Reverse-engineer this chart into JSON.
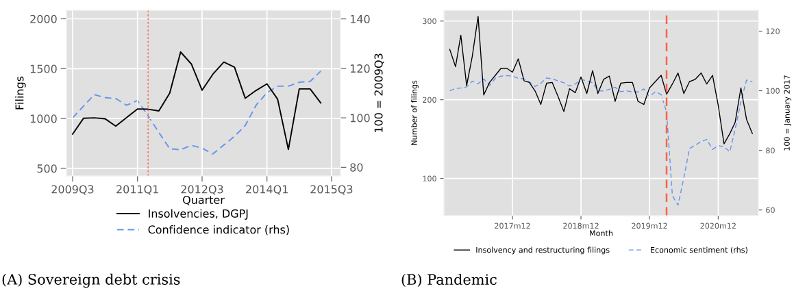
{
  "chart_data": [
    {
      "type": "line",
      "title": "(A) Sovereign debt crisis",
      "xlabel": "Quarter",
      "ylabel": "Filings",
      "y2label": "100 = 2009Q3",
      "x": [
        "2009-07",
        "2009-10",
        "2010-01",
        "2010-04",
        "2010-07",
        "2010-10",
        "2011-01",
        "2011-04",
        "2011-07",
        "2011-10",
        "2012-01",
        "2012-04",
        "2012-07",
        "2012-10",
        "2013-01",
        "2013-04",
        "2013-07",
        "2013-10",
        "2014-01",
        "2014-04",
        "2014-07",
        "2014-10",
        "2015-01",
        "2015-04"
      ],
      "series": [
        {
          "name": "Insolvencies, DGPJ",
          "color": "#000000",
          "line_style": "solid",
          "values": [
            843,
            1002,
            1007,
            998,
            924,
            1010,
            1096,
            1093,
            1076,
            1255,
            1667,
            1547,
            1284,
            1446,
            1566,
            1515,
            1203,
            1282,
            1348,
            1194,
            689,
            1297,
            1297,
            1157
          ]
        },
        {
          "name": "Confidence indicator (rhs)",
          "color": "#6495ed",
          "line_style": "dashed",
          "axis": "y2",
          "values": [
            100,
            104.7,
            109.4,
            108.2,
            107.8,
            105.1,
            107.0,
            100.8,
            94.1,
            87.5,
            87.1,
            88.9,
            87.7,
            85.4,
            89.0,
            92.5,
            96.9,
            105.1,
            110.2,
            112.8,
            112.8,
            114.4,
            114.7,
            118.9
          ]
        }
      ],
      "xlim": [
        "2009-05-10",
        "2015-09-15"
      ],
      "xticks": [
        {
          "value": "2009-07",
          "label": "2009Q3"
        },
        {
          "value": "2011-01",
          "label": "2011Q1"
        },
        {
          "value": "2012-07",
          "label": "2012Q3"
        },
        {
          "value": "2014-01",
          "label": "2014Q1"
        },
        {
          "value": "2015-07",
          "label": "2015Q3"
        }
      ],
      "ylim": [
        424,
        2086
      ],
      "yticks": [
        500,
        1000,
        1500,
        2000
      ],
      "y2lim": [
        76.5,
        143.5
      ],
      "y2ticks": [
        80,
        100,
        120,
        140
      ],
      "ref_lines": [
        {
          "axis": "x",
          "value": "2011-04",
          "color": "#ff6347",
          "line_style": "dotted"
        }
      ],
      "grid": true,
      "legend": "bottom",
      "marker": "none"
    },
    {
      "type": "line",
      "title": "(B) Pandemic",
      "xlabel": "Month",
      "ylabel": "Number of filings",
      "y2label": "100 = January 2017",
      "x": [
        "2017-01",
        "2017-02",
        "2017-03",
        "2017-04",
        "2017-05",
        "2017-06",
        "2017-07",
        "2017-08",
        "2017-09",
        "2017-10",
        "2017-11",
        "2017-12",
        "2018-01",
        "2018-02",
        "2018-03",
        "2018-04",
        "2018-05",
        "2018-06",
        "2018-07",
        "2018-08",
        "2018-09",
        "2018-10",
        "2018-11",
        "2018-12",
        "2019-01",
        "2019-02",
        "2019-03",
        "2019-04",
        "2019-05",
        "2019-06",
        "2019-07",
        "2019-08",
        "2019-09",
        "2019-10",
        "2019-11",
        "2019-12",
        "2020-01",
        "2020-02",
        "2020-03",
        "2020-04",
        "2020-05",
        "2020-06",
        "2020-07",
        "2020-08",
        "2020-09",
        "2020-10",
        "2020-11",
        "2020-12",
        "2021-01",
        "2021-02",
        "2021-03",
        "2021-04",
        "2021-05",
        "2021-06"
      ],
      "series": [
        {
          "name": "Insolvency and restructuring filings",
          "color": "#000000",
          "line_style": "solid",
          "values": [
            264,
            242,
            282,
            218,
            255,
            306,
            206,
            222,
            231,
            240,
            240,
            235,
            252,
            224,
            222,
            211,
            194,
            221,
            222,
            204,
            185,
            214,
            209,
            229,
            208,
            237,
            208,
            226,
            230,
            198,
            221,
            222,
            222,
            198,
            194,
            215,
            223,
            231,
            207,
            220,
            234,
            208,
            223,
            226,
            234,
            220,
            231,
            193,
            144,
            157,
            171,
            215,
            175,
            157
          ]
        },
        {
          "name": "Economic sentiment (rhs)",
          "color": "#6495ed",
          "line_style": "dashed",
          "axis": "y2",
          "values": [
            100,
            100.8,
            100.9,
            101.3,
            103.2,
            102.3,
            104.0,
            101.8,
            104.2,
            104.9,
            105.1,
            104.9,
            104.2,
            104.0,
            103.0,
            101.4,
            102.5,
            104.3,
            104.0,
            103.3,
            102.7,
            101.6,
            102.3,
            103.8,
            103.3,
            102.7,
            100.1,
            99.9,
            100.5,
            101.2,
            99.7,
            100.0,
            99.6,
            99.6,
            100.6,
            98.0,
            99.7,
            98.7,
            92.9,
            64.8,
            61.6,
            70.8,
            80.6,
            81.8,
            82.9,
            83.7,
            80.3,
            81.6,
            81.2,
            79.5,
            87.0,
            96.3,
            103.6,
            103.0
          ]
        }
      ],
      "xlim": [
        "2016-12-01",
        "2021-07-03"
      ],
      "xticks": [
        {
          "value": "2017-12",
          "label": "2017m12"
        },
        {
          "value": "2018-12",
          "label": "2018m12"
        },
        {
          "value": "2019-12",
          "label": "2019m12"
        },
        {
          "value": "2020-12",
          "label": "2020m12"
        }
      ],
      "ylim": [
        52.7,
        313.7
      ],
      "yticks": [
        100,
        200,
        300
      ],
      "y2lim": [
        58.1,
        127
      ],
      "y2ticks": [
        60,
        80,
        100,
        120
      ],
      "ref_lines": [
        {
          "axis": "x",
          "value": "2020-03",
          "color": "#ff6347",
          "line_style": "dashed"
        }
      ],
      "grid": true,
      "legend": "bottom",
      "marker": "none"
    }
  ]
}
